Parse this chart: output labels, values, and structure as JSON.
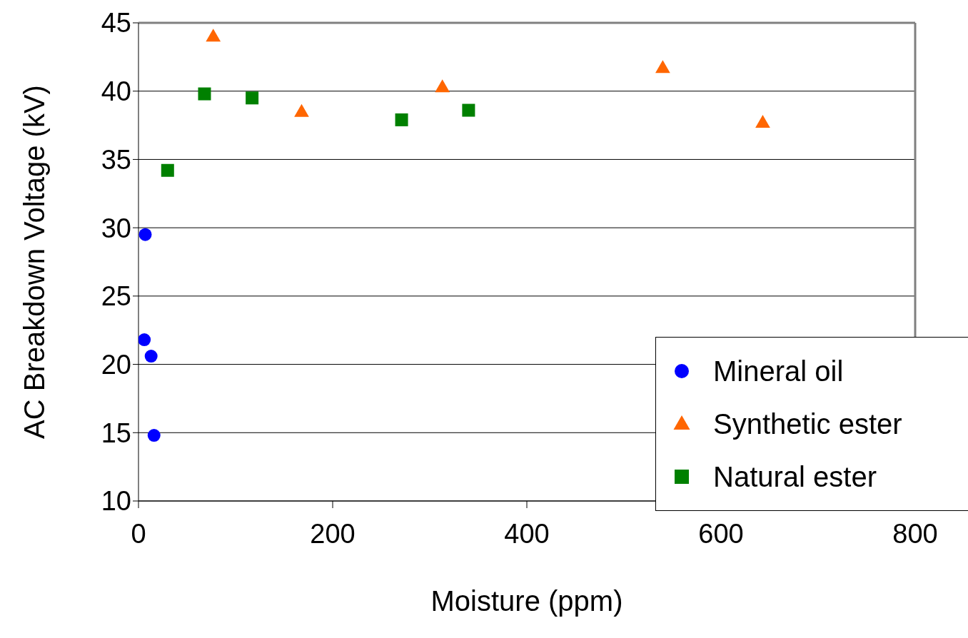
{
  "chart_data": {
    "type": "scatter",
    "xlabel": "Moisture (ppm)",
    "ylabel": "AC Breakdown Voltage (kV)",
    "xlim": [
      0,
      800
    ],
    "xticks": [
      0,
      200,
      400,
      600,
      800
    ],
    "ylim": [
      10,
      45
    ],
    "yticks": [
      10,
      15,
      20,
      25,
      30,
      35,
      40,
      45
    ],
    "grid": "y",
    "legend": "bottom right",
    "series": [
      {
        "name": "Mineral oil",
        "color": "#0000ff",
        "marker": "circle",
        "x": [
          7,
          6,
          13,
          16
        ],
        "values": [
          29.5,
          21.8,
          20.6,
          14.8
        ]
      },
      {
        "name": "Synthetic ester",
        "color": "#ff6600",
        "marker": "triangle",
        "x": [
          77,
          168,
          313,
          540,
          643
        ],
        "values": [
          44.0,
          38.5,
          40.3,
          41.7,
          37.7
        ]
      },
      {
        "name": "Natural ester",
        "color": "#008000",
        "marker": "square",
        "x": [
          30,
          68,
          117,
          271,
          340
        ],
        "values": [
          34.2,
          39.8,
          39.5,
          37.9,
          38.6
        ]
      }
    ]
  }
}
